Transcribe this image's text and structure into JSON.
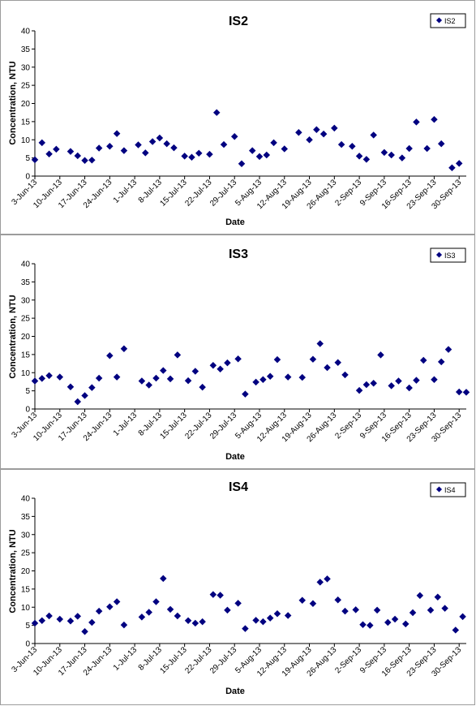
{
  "chart_data": [
    {
      "type": "scatter",
      "title": "IS2",
      "xlabel": "Date",
      "ylabel": "Concentration, NTU",
      "ylim": [
        0,
        40
      ],
      "yticks": [
        "0",
        "5",
        "10",
        "15",
        "20",
        "25",
        "30",
        "35",
        "40"
      ],
      "xlim": [
        "2013-06-03",
        "2013-10-02"
      ],
      "xticks": [
        "3-Jun-13",
        "10-Jun-13",
        "17-Jun-13",
        "24-Jun-13",
        "1-Jul-13",
        "8-Jul-13",
        "15-Jul-13",
        "22-Jul-13",
        "29-Jul-13",
        "5-Aug-13",
        "12-Aug-13",
        "19-Aug-13",
        "26-Aug-13",
        "2-Sep-13",
        "9-Sep-13",
        "16-Sep-13",
        "23-Sep-13",
        "30-Sep-13"
      ],
      "grid": false,
      "legend_position": "top-right",
      "marker_color": "#000080",
      "series": [
        {
          "name": "IS2",
          "points": [
            [
              "2013-06-03",
              4.5
            ],
            [
              "2013-06-05",
              9.2
            ],
            [
              "2013-06-07",
              6.1
            ],
            [
              "2013-06-09",
              7.4
            ],
            [
              "2013-06-13",
              6.8
            ],
            [
              "2013-06-15",
              5.6
            ],
            [
              "2013-06-17",
              4.3
            ],
            [
              "2013-06-19",
              4.4
            ],
            [
              "2013-06-21",
              7.7
            ],
            [
              "2013-06-24",
              8.2
            ],
            [
              "2013-06-26",
              11.7
            ],
            [
              "2013-06-28",
              7.0
            ],
            [
              "2013-07-02",
              8.6
            ],
            [
              "2013-07-04",
              6.4
            ],
            [
              "2013-07-06",
              9.5
            ],
            [
              "2013-07-08",
              10.5
            ],
            [
              "2013-07-10",
              8.9
            ],
            [
              "2013-07-12",
              7.8
            ],
            [
              "2013-07-15",
              5.5
            ],
            [
              "2013-07-17",
              5.2
            ],
            [
              "2013-07-19",
              6.3
            ],
            [
              "2013-07-22",
              6.0
            ],
            [
              "2013-07-24",
              17.5
            ],
            [
              "2013-07-26",
              8.7
            ],
            [
              "2013-07-29",
              10.9
            ],
            [
              "2013-07-31",
              3.4
            ],
            [
              "2013-08-03",
              7.0
            ],
            [
              "2013-08-05",
              5.4
            ],
            [
              "2013-08-07",
              5.8
            ],
            [
              "2013-08-09",
              9.2
            ],
            [
              "2013-08-12",
              7.5
            ],
            [
              "2013-08-16",
              12.0
            ],
            [
              "2013-08-19",
              10.0
            ],
            [
              "2013-08-21",
              12.8
            ],
            [
              "2013-08-23",
              11.6
            ],
            [
              "2013-08-26",
              13.2
            ],
            [
              "2013-08-28",
              8.7
            ],
            [
              "2013-08-31",
              8.2
            ],
            [
              "2013-09-02",
              5.5
            ],
            [
              "2013-09-04",
              4.6
            ],
            [
              "2013-09-06",
              11.3
            ],
            [
              "2013-09-09",
              6.5
            ],
            [
              "2013-09-11",
              5.8
            ],
            [
              "2013-09-14",
              5.0
            ],
            [
              "2013-09-16",
              7.6
            ],
            [
              "2013-09-18",
              14.9
            ],
            [
              "2013-09-21",
              7.6
            ],
            [
              "2013-09-23",
              15.6
            ],
            [
              "2013-09-25",
              8.9
            ],
            [
              "2013-09-28",
              2.3
            ],
            [
              "2013-09-30",
              3.5
            ]
          ]
        }
      ]
    },
    {
      "type": "scatter",
      "title": "IS3",
      "xlabel": "Date",
      "ylabel": "Concentration, NTU",
      "ylim": [
        0,
        40
      ],
      "yticks": [
        "0",
        "5",
        "10",
        "15",
        "20",
        "25",
        "30",
        "35",
        "40"
      ],
      "xlim": [
        "2013-06-03",
        "2013-10-02"
      ],
      "xticks": [
        "3-Jun-13",
        "10-Jun-13",
        "17-Jun-13",
        "24-Jun-13",
        "1-Jul-13",
        "8-Jul-13",
        "15-Jul-13",
        "22-Jul-13",
        "29-Jul-13",
        "5-Aug-13",
        "12-Aug-13",
        "19-Aug-13",
        "26-Aug-13",
        "2-Sep-13",
        "9-Sep-13",
        "16-Sep-13",
        "23-Sep-13",
        "30-Sep-13"
      ],
      "grid": false,
      "legend_position": "top-right",
      "marker_color": "#000080",
      "series": [
        {
          "name": "IS3",
          "points": [
            [
              "2013-06-03",
              7.7
            ],
            [
              "2013-06-05",
              8.4
            ],
            [
              "2013-06-07",
              9.2
            ],
            [
              "2013-06-10",
              8.8
            ],
            [
              "2013-06-13",
              6.1
            ],
            [
              "2013-06-15",
              2.0
            ],
            [
              "2013-06-17",
              3.7
            ],
            [
              "2013-06-19",
              5.9
            ],
            [
              "2013-06-21",
              8.5
            ],
            [
              "2013-06-24",
              14.7
            ],
            [
              "2013-06-26",
              8.8
            ],
            [
              "2013-06-28",
              16.6
            ],
            [
              "2013-07-03",
              7.7
            ],
            [
              "2013-07-05",
              6.6
            ],
            [
              "2013-07-07",
              8.5
            ],
            [
              "2013-07-09",
              10.6
            ],
            [
              "2013-07-11",
              8.3
            ],
            [
              "2013-07-13",
              14.9
            ],
            [
              "2013-07-16",
              7.8
            ],
            [
              "2013-07-18",
              10.4
            ],
            [
              "2013-07-20",
              6.0
            ],
            [
              "2013-07-23",
              12.0
            ],
            [
              "2013-07-25",
              11.0
            ],
            [
              "2013-07-27",
              12.7
            ],
            [
              "2013-07-30",
              13.8
            ],
            [
              "2013-08-01",
              4.1
            ],
            [
              "2013-08-04",
              7.4
            ],
            [
              "2013-08-06",
              8.1
            ],
            [
              "2013-08-08",
              9.0
            ],
            [
              "2013-08-10",
              13.6
            ],
            [
              "2013-08-13",
              8.8
            ],
            [
              "2013-08-17",
              8.7
            ],
            [
              "2013-08-20",
              13.7
            ],
            [
              "2013-08-22",
              18.0
            ],
            [
              "2013-08-24",
              11.4
            ],
            [
              "2013-08-27",
              12.8
            ],
            [
              "2013-08-29",
              9.4
            ],
            [
              "2013-09-02",
              5.1
            ],
            [
              "2013-09-04",
              6.7
            ],
            [
              "2013-09-06",
              7.1
            ],
            [
              "2013-09-08",
              14.9
            ],
            [
              "2013-09-11",
              6.4
            ],
            [
              "2013-09-13",
              7.7
            ],
            [
              "2013-09-16",
              5.8
            ],
            [
              "2013-09-18",
              7.9
            ],
            [
              "2013-09-20",
              13.4
            ],
            [
              "2013-09-23",
              8.1
            ],
            [
              "2013-09-25",
              13.0
            ],
            [
              "2013-09-27",
              16.4
            ],
            [
              "2013-09-30",
              4.7
            ],
            [
              "2013-10-02",
              4.6
            ]
          ]
        }
      ]
    },
    {
      "type": "scatter",
      "title": "IS4",
      "xlabel": "Date",
      "ylabel": "Concentration, NTU",
      "ylim": [
        0,
        40
      ],
      "yticks": [
        "0",
        "5",
        "10",
        "15",
        "20",
        "25",
        "30",
        "35",
        "40"
      ],
      "xlim": [
        "2013-06-03",
        "2013-10-02"
      ],
      "xticks": [
        "3-Jun-13",
        "10-Jun-13",
        "17-Jun-13",
        "24-Jun-13",
        "1-Jul-13",
        "8-Jul-13",
        "15-Jul-13",
        "22-Jul-13",
        "29-Jul-13",
        "5-Aug-13",
        "12-Aug-13",
        "19-Aug-13",
        "26-Aug-13",
        "2-Sep-13",
        "9-Sep-13",
        "16-Sep-13",
        "23-Sep-13",
        "30-Sep-13"
      ],
      "grid": false,
      "legend_position": "top-right",
      "marker_color": "#000080",
      "series": [
        {
          "name": "IS4",
          "points": [
            [
              "2013-06-03",
              5.6
            ],
            [
              "2013-06-05",
              6.3
            ],
            [
              "2013-06-07",
              7.6
            ],
            [
              "2013-06-10",
              6.7
            ],
            [
              "2013-06-13",
              6.2
            ],
            [
              "2013-06-15",
              7.5
            ],
            [
              "2013-06-17",
              3.3
            ],
            [
              "2013-06-19",
              5.8
            ],
            [
              "2013-06-21",
              8.9
            ],
            [
              "2013-06-24",
              10.1
            ],
            [
              "2013-06-26",
              11.5
            ],
            [
              "2013-06-28",
              5.1
            ],
            [
              "2013-07-03",
              7.3
            ],
            [
              "2013-07-05",
              8.6
            ],
            [
              "2013-07-07",
              11.5
            ],
            [
              "2013-07-09",
              17.9
            ],
            [
              "2013-07-11",
              9.4
            ],
            [
              "2013-07-13",
              7.6
            ],
            [
              "2013-07-16",
              6.3
            ],
            [
              "2013-07-18",
              5.6
            ],
            [
              "2013-07-20",
              6.0
            ],
            [
              "2013-07-23",
              13.5
            ],
            [
              "2013-07-25",
              13.3
            ],
            [
              "2013-07-27",
              9.2
            ],
            [
              "2013-07-30",
              11.1
            ],
            [
              "2013-08-01",
              4.1
            ],
            [
              "2013-08-04",
              6.4
            ],
            [
              "2013-08-06",
              6.0
            ],
            [
              "2013-08-08",
              7.0
            ],
            [
              "2013-08-10",
              8.2
            ],
            [
              "2013-08-13",
              7.7
            ],
            [
              "2013-08-17",
              11.9
            ],
            [
              "2013-08-20",
              11.0
            ],
            [
              "2013-08-22",
              16.9
            ],
            [
              "2013-08-24",
              17.8
            ],
            [
              "2013-08-27",
              12.0
            ],
            [
              "2013-08-29",
              8.9
            ],
            [
              "2013-09-01",
              9.3
            ],
            [
              "2013-09-03",
              5.2
            ],
            [
              "2013-09-05",
              5.0
            ],
            [
              "2013-09-07",
              9.2
            ],
            [
              "2013-09-10",
              5.8
            ],
            [
              "2013-09-12",
              6.7
            ],
            [
              "2013-09-15",
              5.4
            ],
            [
              "2013-09-17",
              8.5
            ],
            [
              "2013-09-19",
              13.2
            ],
            [
              "2013-09-22",
              9.2
            ],
            [
              "2013-09-24",
              12.8
            ],
            [
              "2013-09-26",
              9.7
            ],
            [
              "2013-09-29",
              3.7
            ],
            [
              "2013-10-01",
              7.4
            ]
          ]
        }
      ]
    }
  ]
}
